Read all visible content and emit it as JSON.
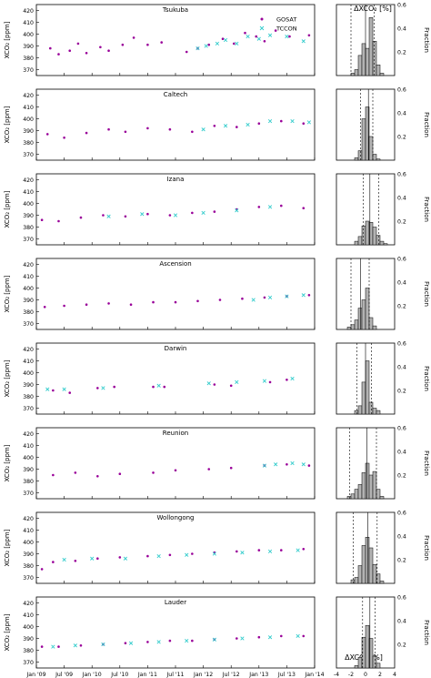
{
  "figure": {
    "hist_title": "ΔXCO₂ [%]",
    "hist_xlabel": "ΔXCO₂ [%]",
    "legend": [
      "GOSAT",
      "TCCON"
    ],
    "colors": {
      "gosat": "#990099",
      "tccon": "#33cccc",
      "hist_fill": "#b3b3b3"
    }
  },
  "chart_data": [
    {
      "type": "scatter",
      "site": "Tsukuba",
      "ylabel": "XCO₂ [ppm]",
      "xlim": [
        "2009-01",
        "2014-01"
      ],
      "ylim": [
        365,
        425
      ],
      "yticks": [
        370,
        380,
        390,
        400,
        410,
        420
      ],
      "xticks": [
        "Jan '09",
        "Jul '09",
        "Jan '10",
        "Jul '10",
        "Jan '11",
        "Jul '11",
        "Jan '12",
        "Jul '12",
        "Jan '13",
        "Jul '13",
        "Jan '14"
      ],
      "series": [
        {
          "name": "GOSAT",
          "values": [
            [
              2009.25,
              388
            ],
            [
              2009.4,
              383
            ],
            [
              2009.6,
              386
            ],
            [
              2009.75,
              392
            ],
            [
              2009.9,
              384
            ],
            [
              2010.15,
              389
            ],
            [
              2010.3,
              386
            ],
            [
              2010.55,
              391
            ],
            [
              2010.75,
              397
            ],
            [
              2011.0,
              391
            ],
            [
              2011.25,
              393
            ],
            [
              2011.7,
              385
            ],
            [
              2011.9,
              388
            ],
            [
              2012.1,
              391
            ],
            [
              2012.35,
              396
            ],
            [
              2012.55,
              392
            ],
            [
              2012.75,
              401
            ],
            [
              2012.95,
              398
            ],
            [
              2013.1,
              394
            ],
            [
              2013.3,
              403
            ],
            [
              2013.55,
              398
            ],
            [
              2013.9,
              399
            ]
          ]
        },
        {
          "name": "TCCON",
          "values": [
            [
              2011.9,
              388
            ],
            [
              2012.05,
              390
            ],
            [
              2012.25,
              392
            ],
            [
              2012.4,
              395
            ],
            [
              2012.6,
              392
            ],
            [
              2012.8,
              398
            ],
            [
              2013.0,
              396
            ],
            [
              2013.2,
              399
            ],
            [
              2013.5,
              398
            ],
            [
              2013.8,
              394
            ]
          ]
        }
      ]
    },
    {
      "type": "scatter",
      "site": "Caltech",
      "ylabel": "XCO₂ [ppm]",
      "ylim": [
        365,
        425
      ],
      "series": [
        {
          "name": "GOSAT",
          "values": [
            [
              2009.2,
              387
            ],
            [
              2009.5,
              384
            ],
            [
              2009.9,
              388
            ],
            [
              2010.3,
              391
            ],
            [
              2010.6,
              389
            ],
            [
              2011.0,
              392
            ],
            [
              2011.4,
              391
            ],
            [
              2011.8,
              389
            ],
            [
              2012.2,
              394
            ],
            [
              2012.6,
              393
            ],
            [
              2013.0,
              396
            ],
            [
              2013.4,
              398
            ],
            [
              2013.8,
              396
            ]
          ]
        },
        {
          "name": "TCCON",
          "values": [
            [
              2012.0,
              391
            ],
            [
              2012.4,
              394
            ],
            [
              2012.8,
              395
            ],
            [
              2013.2,
              398
            ],
            [
              2013.6,
              398
            ],
            [
              2013.9,
              397
            ]
          ]
        }
      ]
    },
    {
      "type": "scatter",
      "site": "Izana",
      "ylabel": "XCO₂ [ppm]",
      "ylim": [
        365,
        425
      ],
      "series": [
        {
          "name": "GOSAT",
          "values": [
            [
              2009.1,
              386
            ],
            [
              2009.4,
              385
            ],
            [
              2009.8,
              388
            ],
            [
              2010.2,
              390
            ],
            [
              2010.6,
              389
            ],
            [
              2011.0,
              391
            ],
            [
              2011.4,
              390
            ],
            [
              2011.8,
              392
            ],
            [
              2012.2,
              393
            ],
            [
              2012.6,
              395
            ],
            [
              2013.0,
              397
            ],
            [
              2013.4,
              398
            ],
            [
              2013.8,
              396
            ]
          ]
        },
        {
          "name": "TCCON",
          "values": [
            [
              2010.3,
              389
            ],
            [
              2010.9,
              391
            ],
            [
              2011.5,
              390
            ],
            [
              2012.0,
              392
            ],
            [
              2012.6,
              394
            ],
            [
              2013.2,
              397
            ]
          ]
        }
      ]
    },
    {
      "type": "scatter",
      "site": "Ascension",
      "ylabel": "XCO₂ [ppm]",
      "ylim": [
        365,
        425
      ],
      "series": [
        {
          "name": "GOSAT",
          "values": [
            [
              2009.15,
              384
            ],
            [
              2009.5,
              385
            ],
            [
              2009.9,
              386
            ],
            [
              2010.3,
              387
            ],
            [
              2010.7,
              386
            ],
            [
              2011.1,
              388
            ],
            [
              2011.5,
              388
            ],
            [
              2011.9,
              389
            ],
            [
              2012.3,
              390
            ],
            [
              2012.7,
              391
            ],
            [
              2013.1,
              392
            ],
            [
              2013.5,
              393
            ],
            [
              2013.9,
              394
            ]
          ]
        },
        {
          "name": "TCCON",
          "values": [
            [
              2012.9,
              390
            ],
            [
              2013.2,
              392
            ],
            [
              2013.5,
              393
            ],
            [
              2013.8,
              394
            ]
          ]
        }
      ]
    },
    {
      "type": "scatter",
      "site": "Darwin",
      "ylabel": "XCO₂ [ppm]",
      "ylim": [
        365,
        425
      ],
      "series": [
        {
          "name": "GOSAT",
          "values": [
            [
              2009.3,
              385
            ],
            [
              2009.6,
              383
            ],
            [
              2010.1,
              387
            ],
            [
              2010.4,
              388
            ],
            [
              2011.1,
              388
            ],
            [
              2011.3,
              388
            ],
            [
              2012.2,
              390
            ],
            [
              2012.5,
              389
            ],
            [
              2013.2,
              392
            ],
            [
              2013.5,
              394
            ]
          ]
        },
        {
          "name": "TCCON",
          "values": [
            [
              2009.2,
              386
            ],
            [
              2009.5,
              386
            ],
            [
              2010.2,
              387
            ],
            [
              2011.2,
              389
            ],
            [
              2012.1,
              391
            ],
            [
              2012.6,
              392
            ],
            [
              2013.1,
              393
            ],
            [
              2013.6,
              395
            ]
          ]
        }
      ]
    },
    {
      "type": "scatter",
      "site": "Reunion",
      "ylabel": "XCO₂ [ppm]",
      "ylim": [
        365,
        425
      ],
      "series": [
        {
          "name": "GOSAT",
          "values": [
            [
              2009.3,
              385
            ],
            [
              2009.7,
              387
            ],
            [
              2010.1,
              384
            ],
            [
              2010.5,
              386
            ],
            [
              2011.1,
              387
            ],
            [
              2011.5,
              389
            ],
            [
              2012.1,
              390
            ],
            [
              2012.5,
              391
            ],
            [
              2013.1,
              393
            ],
            [
              2013.5,
              394
            ],
            [
              2013.9,
              393
            ]
          ]
        },
        {
          "name": "TCCON",
          "values": [
            [
              2013.1,
              393
            ],
            [
              2013.3,
              394
            ],
            [
              2013.6,
              395
            ],
            [
              2013.8,
              394
            ]
          ]
        }
      ]
    },
    {
      "type": "scatter",
      "site": "Wollongong",
      "ylabel": "XCO₂ [ppm]",
      "ylim": [
        365,
        425
      ],
      "series": [
        {
          "name": "GOSAT",
          "values": [
            [
              2009.1,
              377
            ],
            [
              2009.3,
              383
            ],
            [
              2009.7,
              384
            ],
            [
              2010.1,
              386
            ],
            [
              2010.5,
              387
            ],
            [
              2011.0,
              388
            ],
            [
              2011.4,
              389
            ],
            [
              2011.8,
              390
            ],
            [
              2012.2,
              391
            ],
            [
              2012.6,
              392
            ],
            [
              2013.0,
              393
            ],
            [
              2013.4,
              393
            ],
            [
              2013.8,
              394
            ]
          ]
        },
        {
          "name": "TCCON",
          "values": [
            [
              2009.5,
              385
            ],
            [
              2010.0,
              386
            ],
            [
              2010.6,
              386
            ],
            [
              2011.2,
              388
            ],
            [
              2011.7,
              389
            ],
            [
              2012.2,
              390
            ],
            [
              2012.7,
              391
            ],
            [
              2013.2,
              392
            ],
            [
              2013.7,
              393
            ]
          ]
        }
      ]
    },
    {
      "type": "scatter",
      "site": "Lauder",
      "ylabel": "XCO₂ [ppm]",
      "ylim": [
        365,
        425
      ],
      "series": [
        {
          "name": "GOSAT",
          "values": [
            [
              2009.1,
              383
            ],
            [
              2009.4,
              383
            ],
            [
              2009.8,
              384
            ],
            [
              2010.2,
              385
            ],
            [
              2010.6,
              386
            ],
            [
              2011.0,
              387
            ],
            [
              2011.4,
              388
            ],
            [
              2011.8,
              388
            ],
            [
              2012.2,
              389
            ],
            [
              2012.6,
              390
            ],
            [
              2013.0,
              391
            ],
            [
              2013.4,
              392
            ],
            [
              2013.8,
              392
            ]
          ]
        },
        {
          "name": "TCCON",
          "values": [
            [
              2009.3,
              383
            ],
            [
              2009.7,
              384
            ],
            [
              2010.2,
              385
            ],
            [
              2010.7,
              386
            ],
            [
              2011.2,
              387
            ],
            [
              2011.7,
              388
            ],
            [
              2012.2,
              389
            ],
            [
              2012.7,
              390
            ],
            [
              2013.2,
              391
            ],
            [
              2013.7,
              392
            ]
          ]
        }
      ]
    },
    {
      "type": "bar",
      "panel": "histograms",
      "xlabel": "ΔXCO₂ [%]",
      "ylabel": "Fraction",
      "xlim": [
        -4,
        4
      ],
      "ylim": [
        0,
        0.6
      ],
      "xticks": [
        -4,
        -2,
        0,
        2,
        4
      ],
      "yticks": [
        0.2,
        0.4,
        0.6
      ],
      "bin_edges": [
        -4,
        -3.5,
        -3,
        -2.5,
        -2,
        -1.5,
        -1,
        -0.5,
        0,
        0.5,
        1,
        1.5,
        2,
        2.5,
        3,
        3.5,
        4
      ],
      "series": [
        {
          "site": "Tsukuba",
          "values": [
            0,
            0,
            0,
            0,
            0.02,
            0.05,
            0.17,
            0.27,
            0.23,
            0.49,
            0.29,
            0.09,
            0.02,
            0,
            0,
            0
          ],
          "mean": 0.0,
          "lo": -2.0,
          "hi": 1.2
        },
        {
          "site": "Caltech",
          "values": [
            0,
            0,
            0,
            0,
            0,
            0.02,
            0.08,
            0.35,
            0.45,
            0.2,
            0.05,
            0.01,
            0,
            0,
            0,
            0
          ],
          "mean": 0.4,
          "lo": -0.7,
          "hi": 1.0
        },
        {
          "site": "Izana",
          "values": [
            0,
            0,
            0,
            0,
            0,
            0.03,
            0.07,
            0.16,
            0.2,
            0.19,
            0.15,
            0.08,
            0.03,
            0.01,
            0,
            0
          ],
          "mean": 0.6,
          "lo": -0.3,
          "hi": 1.8
        },
        {
          "site": "Ascension",
          "values": [
            0,
            0,
            0,
            0.02,
            0.04,
            0.08,
            0.18,
            0.25,
            0.35,
            0.1,
            0.03,
            0,
            0,
            0,
            0,
            0
          ],
          "mean": -0.7,
          "lo": -2.0,
          "hi": 0.5
        },
        {
          "site": "Darwin",
          "values": [
            0,
            0,
            0,
            0,
            0,
            0.03,
            0.07,
            0.27,
            0.45,
            0.1,
            0.05,
            0.03,
            0,
            0,
            0,
            0
          ],
          "mean": 0.0,
          "lo": -1.2,
          "hi": 0.8
        },
        {
          "site": "Reunion",
          "values": [
            0,
            0,
            0,
            0.02,
            0.04,
            0.08,
            0.12,
            0.22,
            0.3,
            0.2,
            0.23,
            0.08,
            0.02,
            0,
            0,
            0
          ],
          "mean": 0.2,
          "lo": -2.2,
          "hi": 1.5
        },
        {
          "site": "Wollongong",
          "values": [
            0,
            0,
            0,
            0,
            0.03,
            0.05,
            0.15,
            0.32,
            0.39,
            0.3,
            0.16,
            0.08,
            0.02,
            0,
            0,
            0
          ],
          "mean": 0.3,
          "lo": -1.7,
          "hi": 1.6
        },
        {
          "site": "Lauder",
          "values": [
            0,
            0,
            0,
            0,
            0,
            0.02,
            0.09,
            0.26,
            0.36,
            0.25,
            0.1,
            0.04,
            0,
            0,
            0,
            0
          ],
          "mean": 0.6,
          "lo": -0.4,
          "hi": 1.3
        }
      ]
    }
  ]
}
